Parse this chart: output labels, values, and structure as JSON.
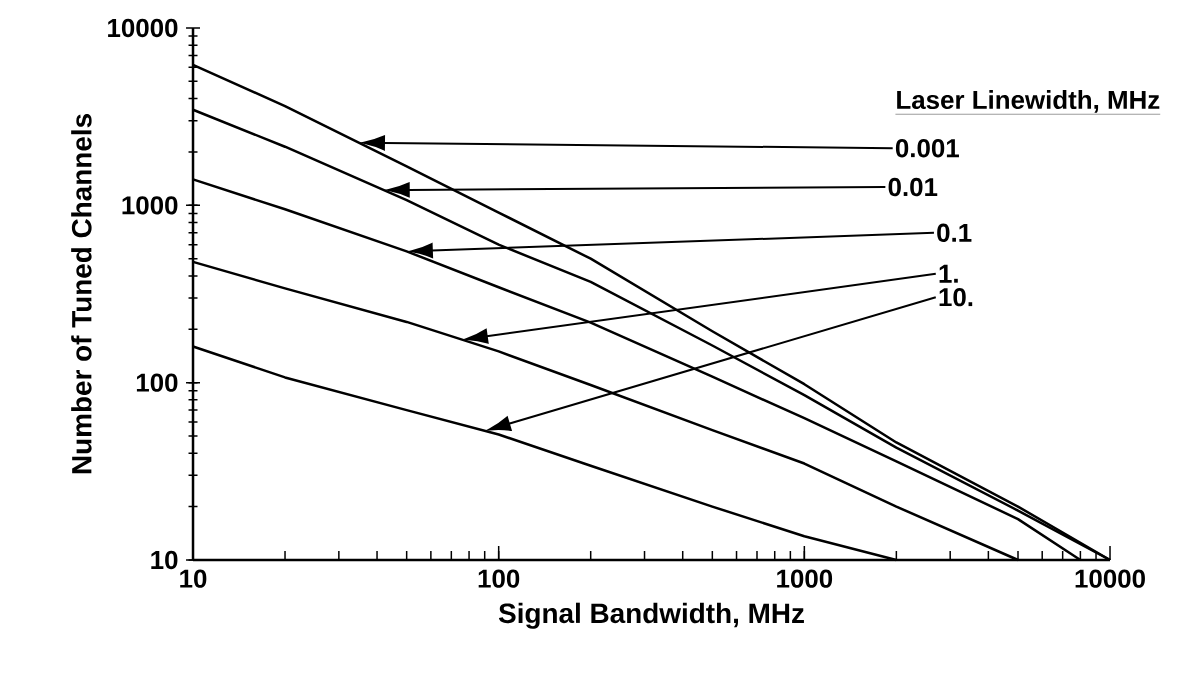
{
  "chart_data": {
    "type": "line",
    "xlabel": "Signal Bandwidth, MHz",
    "ylabel": "Number of Tuned Channels",
    "legend_title": "Laser Linewidth, MHz",
    "log": "xy",
    "grid": false,
    "marker": "none",
    "line_style": "solid",
    "xlim": [
      10,
      10000
    ],
    "ylim": [
      10,
      10000
    ],
    "xticks": [
      10,
      100,
      1000,
      10000
    ],
    "yticks": [
      10,
      100,
      1000,
      10000
    ],
    "series": [
      {
        "color": "#000000",
        "x": [
          10,
          20,
          50,
          100,
          200,
          500,
          1000,
          2000,
          5000,
          10000
        ],
        "values": [
          6200,
          3630,
          1660,
          910,
          500,
          195,
          98,
          46,
          20,
          10
        ]
      },
      {
        "color": "#000000",
        "x": [
          10,
          20,
          50,
          100,
          200,
          500,
          1000,
          2000,
          5000,
          10000
        ],
        "values": [
          3460,
          2140,
          1070,
          600,
          370,
          162,
          85,
          43,
          19,
          10
        ]
      },
      {
        "color": "#000000",
        "x": [
          10,
          20,
          50,
          100,
          200,
          500,
          1000,
          2000,
          5000,
          8000
        ],
        "values": [
          1400,
          950,
          550,
          345,
          218,
          108,
          63,
          36,
          17,
          10
        ]
      },
      {
        "color": "#000000",
        "x": [
          10,
          20,
          50,
          100,
          200,
          500,
          1000,
          2000,
          5000
        ],
        "values": [
          480,
          340,
          220,
          150,
          97,
          54,
          35,
          20,
          10
        ]
      },
      {
        "color": "#000000",
        "x": [
          10,
          20,
          50,
          100,
          200,
          500,
          1000,
          2000
        ],
        "values": [
          160,
          107,
          70,
          51,
          34,
          20,
          13.6,
          10
        ]
      }
    ],
    "annotations": [
      "0.001",
      "0.01",
      "0.1",
      "1.",
      "10."
    ]
  }
}
